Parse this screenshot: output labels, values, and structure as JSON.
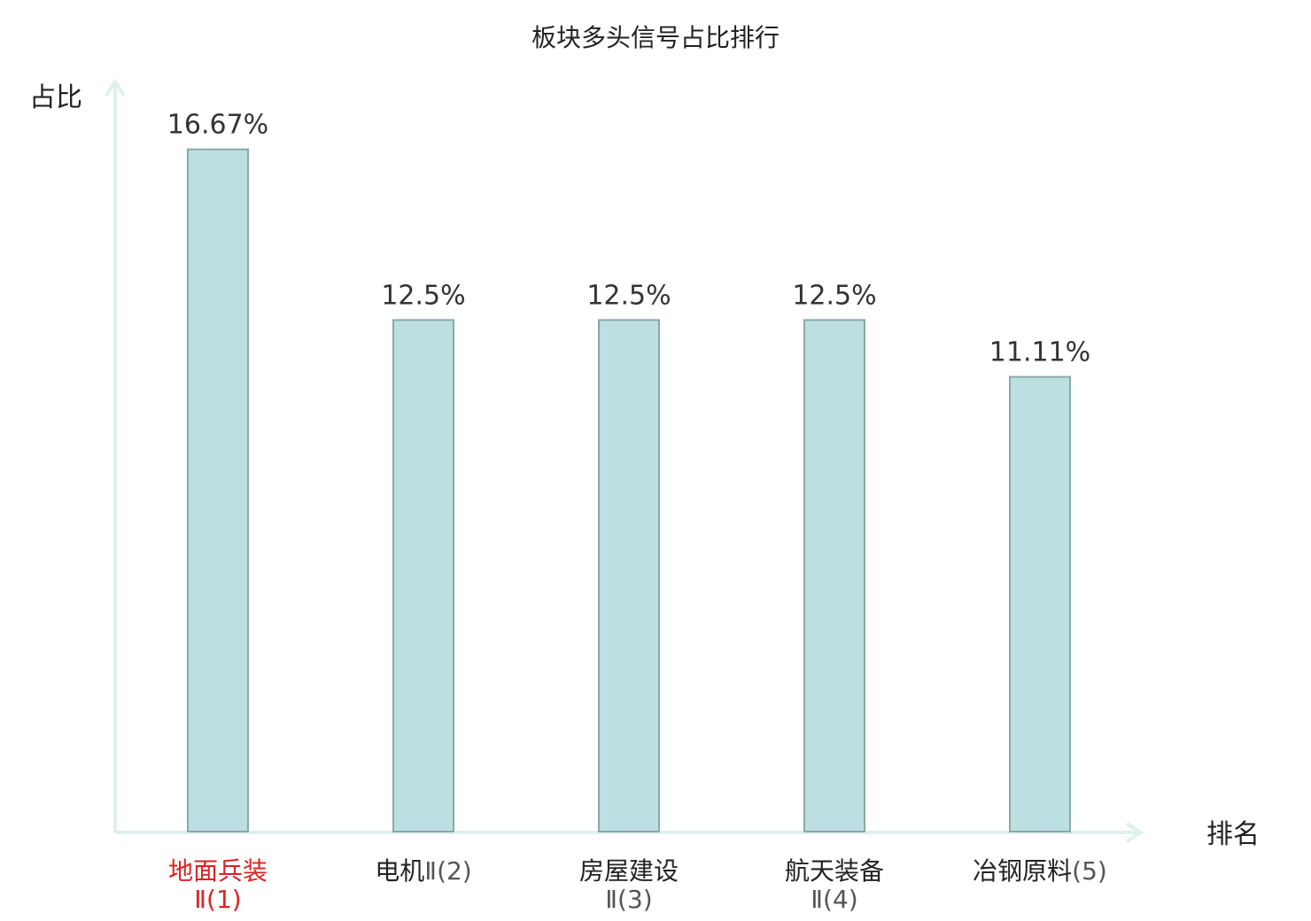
{
  "chart_data": {
    "type": "bar",
    "title": "板块多头信号占比排行",
    "xlabel": "排名",
    "ylabel": "占比",
    "ylim": [
      0,
      18.33
    ],
    "grid": false,
    "categories": [
      {
        "name": "地面兵装",
        "sub": "Ⅱ",
        "rank": "(1)",
        "highlight": true
      },
      {
        "name": "电机",
        "sub": "Ⅱ",
        "rank": "(2)",
        "highlight": false
      },
      {
        "name": "房屋建设",
        "sub": "Ⅱ",
        "rank": "(3)",
        "highlight": false
      },
      {
        "name": "航天装备",
        "sub": "Ⅱ",
        "rank": "(4)",
        "highlight": false
      },
      {
        "name": "冶钢原料",
        "sub": "",
        "rank": "(5)",
        "highlight": false
      }
    ],
    "values": [
      16.67,
      12.5,
      12.5,
      12.5,
      11.11
    ],
    "value_labels": [
      "16.67%",
      "12.5%",
      "12.5%",
      "12.5%",
      "11.11%"
    ]
  },
  "colors": {
    "bar_fill": "#bce0e1",
    "bar_stroke": "#8aa8a8",
    "axis": "#dff0ee",
    "highlight_text": "#e02020",
    "category_text": "#222222",
    "rank_text": "#555555"
  }
}
